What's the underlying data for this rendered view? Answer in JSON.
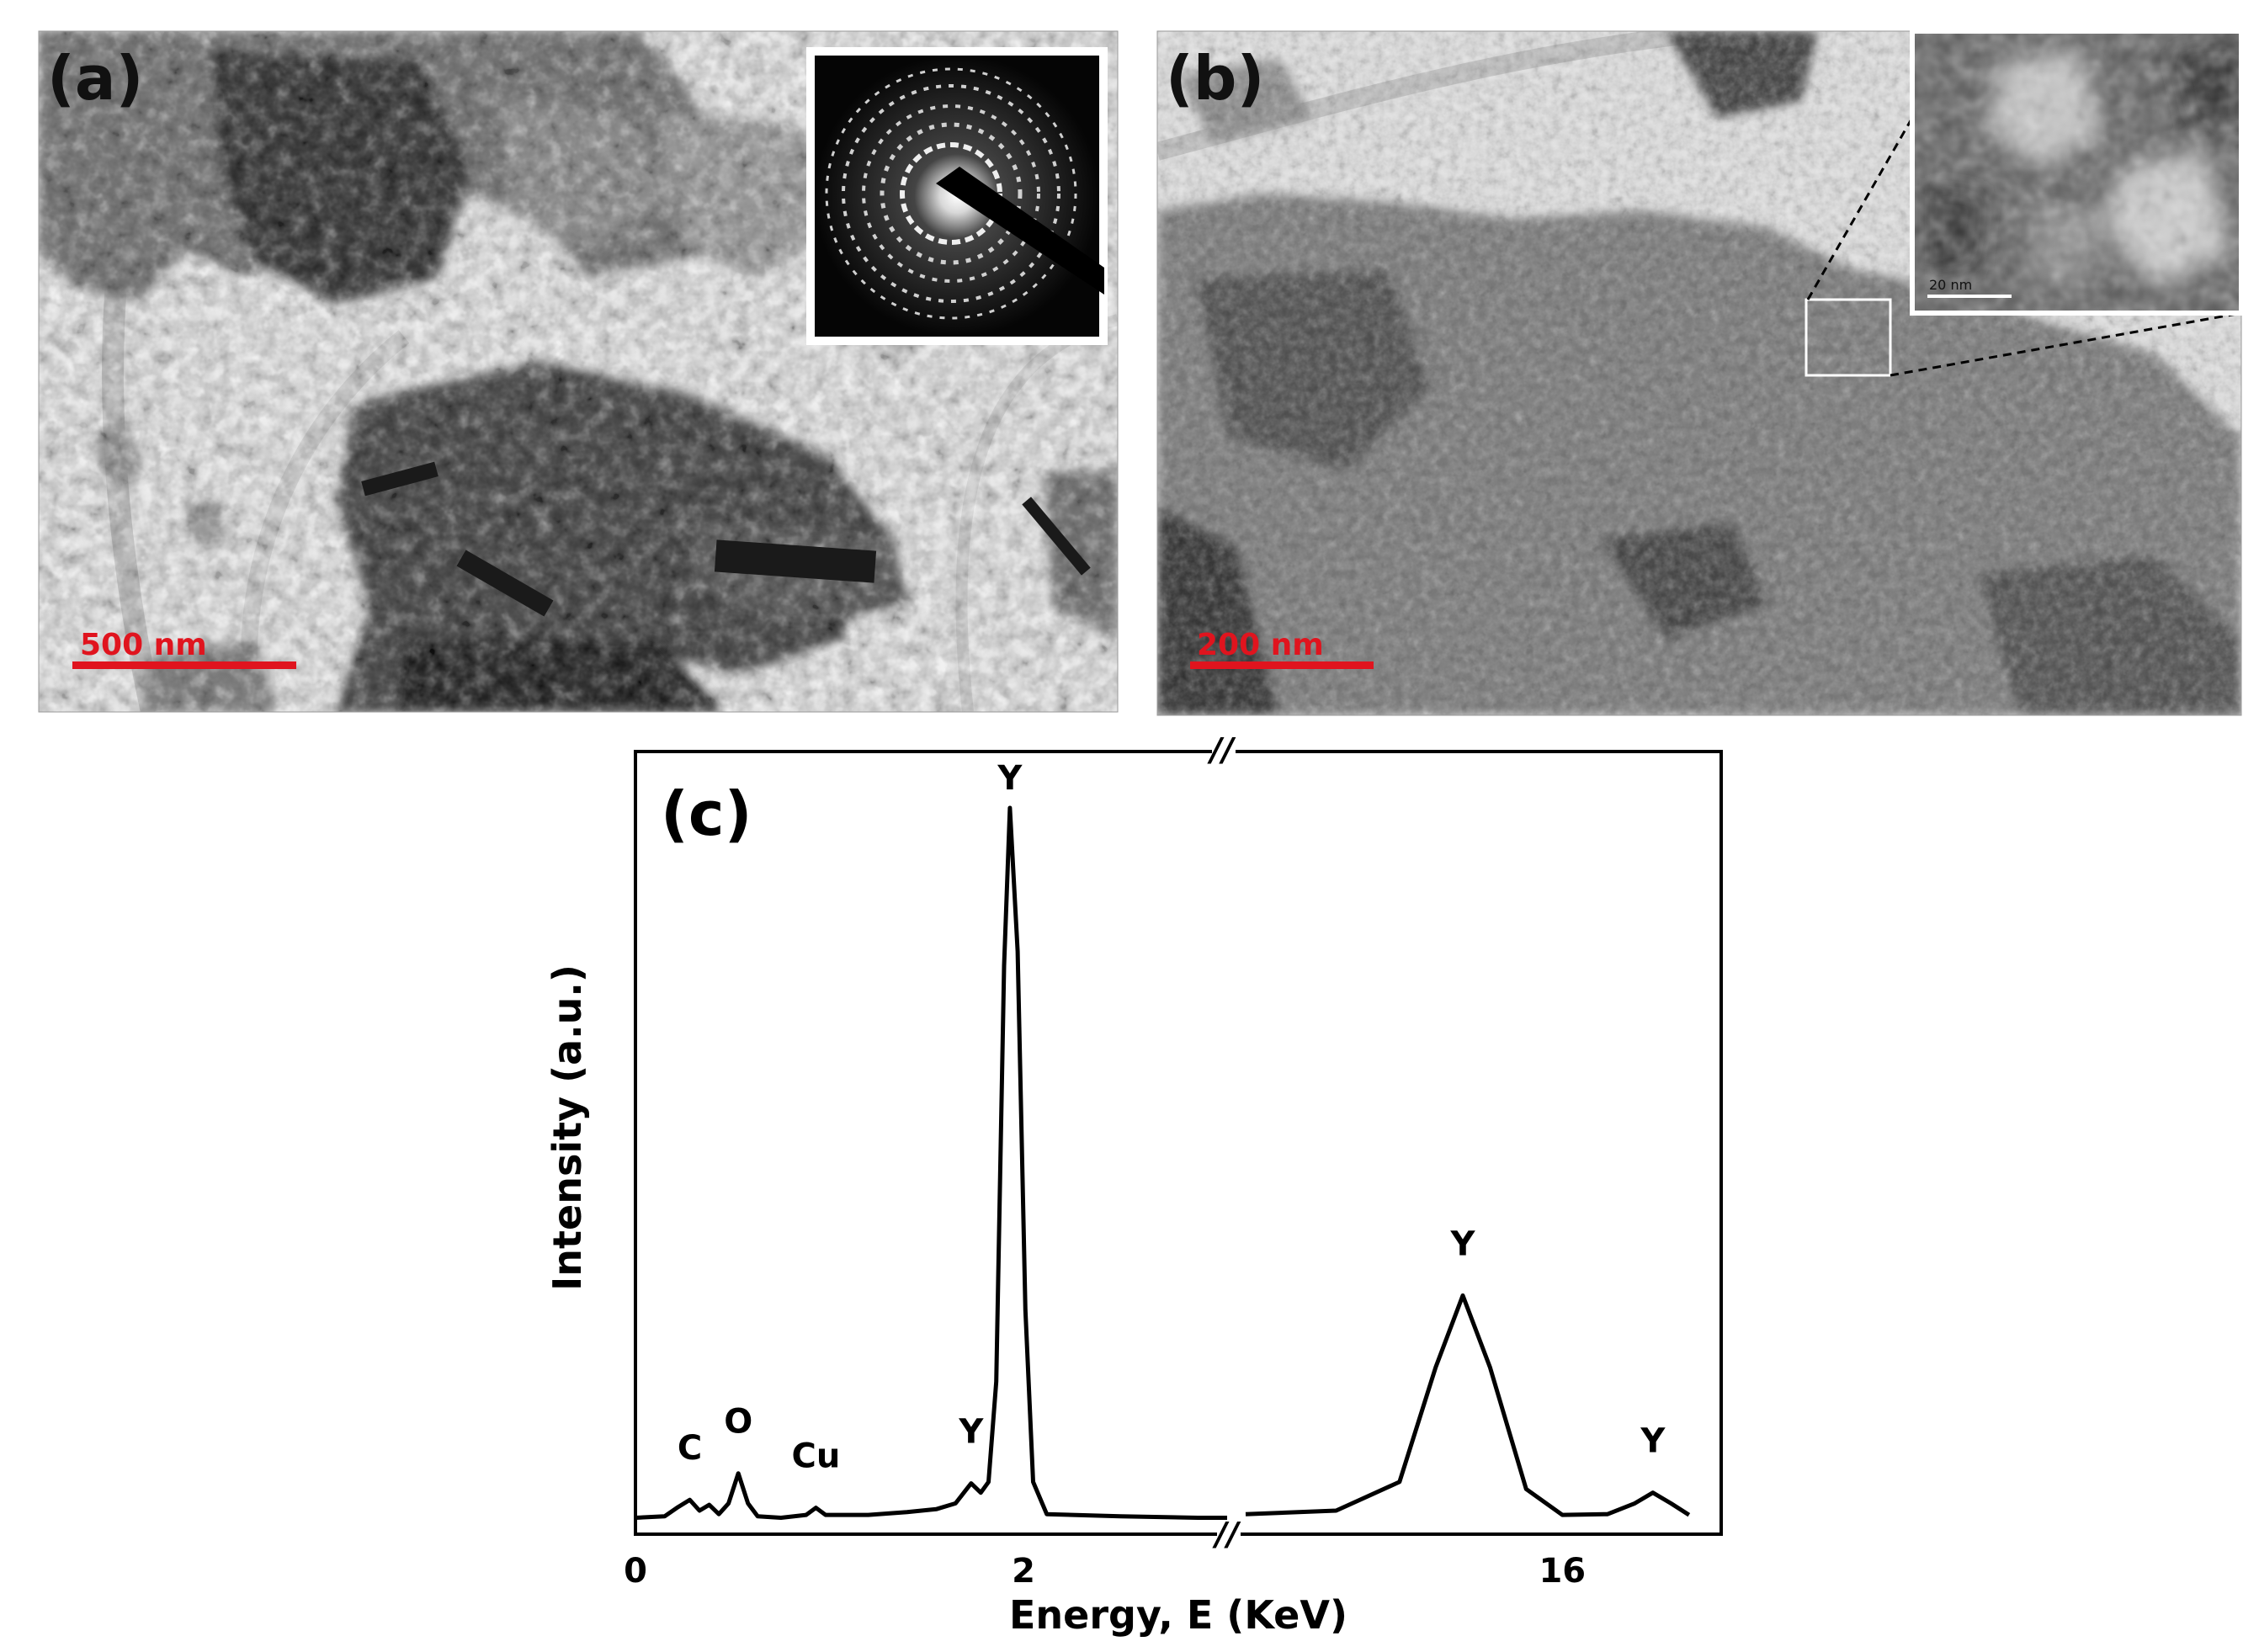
{
  "figure": {
    "panel_a": {
      "label": "(a)",
      "scale_bar_label": "500 nm",
      "scale_bar_color": "#e0141e",
      "inset": "selected-area electron diffraction ring pattern"
    },
    "panel_b": {
      "label": "(b)",
      "scale_bar_label": "200 nm",
      "scale_bar_color": "#e0141e",
      "inset_scale_label": "20 nm"
    },
    "panel_c": {
      "label": "(c)"
    }
  },
  "chart_data": {
    "type": "line",
    "xlabel": "Energy, E (KeV)",
    "ylabel": "Intensity (a.u.)",
    "x_ticks": [
      "0",
      "2",
      "16"
    ],
    "axis_break": "//",
    "grid": false,
    "peak_labels": [
      {
        "label": "C",
        "energy": 0.28
      },
      {
        "label": "O",
        "energy": 0.53
      },
      {
        "label": "Cu",
        "energy": 0.93
      },
      {
        "label": "Y",
        "energy": 1.73
      },
      {
        "label": "Y",
        "energy": 1.93
      },
      {
        "label": "Y",
        "energy": 14.9
      },
      {
        "label": "Y",
        "energy": 17.0
      }
    ],
    "series": [
      {
        "points": [
          [
            0.0,
            0.01
          ],
          [
            0.15,
            0.012
          ],
          [
            0.22,
            0.025
          ],
          [
            0.28,
            0.035
          ],
          [
            0.33,
            0.02
          ],
          [
            0.38,
            0.028
          ],
          [
            0.43,
            0.015
          ],
          [
            0.48,
            0.03
          ],
          [
            0.53,
            0.072
          ],
          [
            0.58,
            0.03
          ],
          [
            0.63,
            0.012
          ],
          [
            0.75,
            0.01
          ],
          [
            0.88,
            0.014
          ],
          [
            0.93,
            0.024
          ],
          [
            0.98,
            0.014
          ],
          [
            1.2,
            0.014
          ],
          [
            1.4,
            0.018
          ],
          [
            1.55,
            0.022
          ],
          [
            1.65,
            0.03
          ],
          [
            1.73,
            0.058
          ],
          [
            1.78,
            0.045
          ],
          [
            1.82,
            0.06
          ],
          [
            1.86,
            0.2
          ],
          [
            1.9,
            0.78
          ],
          [
            1.93,
            1.0
          ],
          [
            1.97,
            0.8
          ],
          [
            2.01,
            0.3
          ],
          [
            2.05,
            0.06
          ],
          [
            2.12,
            0.015
          ],
          [
            2.5,
            0.012
          ],
          [
            2.9,
            0.01
          ],
          [
            3.05,
            0.01
          ],
          [
            12.5,
            0.015
          ],
          [
            13.5,
            0.02
          ],
          [
            14.2,
            0.06
          ],
          [
            14.6,
            0.22
          ],
          [
            14.9,
            0.32
          ],
          [
            15.2,
            0.22
          ],
          [
            15.6,
            0.05
          ],
          [
            16.0,
            0.014
          ],
          [
            16.5,
            0.015
          ],
          [
            16.8,
            0.03
          ],
          [
            17.0,
            0.045
          ],
          [
            17.2,
            0.03
          ],
          [
            17.4,
            0.014
          ]
        ]
      }
    ]
  }
}
